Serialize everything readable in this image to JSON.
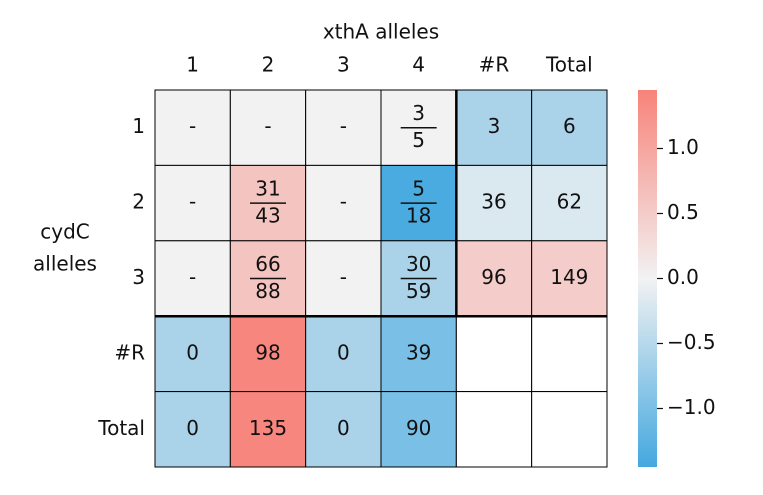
{
  "chart_data": {
    "type": "heatmap",
    "x_label": "xthA alleles",
    "y_label": [
      "cydC",
      "alleles"
    ],
    "columns": [
      "1",
      "2",
      "3",
      "4",
      "#R",
      "Total"
    ],
    "rows": [
      "1",
      "2",
      "3",
      "#R",
      "Total"
    ],
    "cell_labels": [
      [
        "-",
        "-",
        "-",
        {
          "numerator": 3,
          "denominator": 5
        },
        3,
        6
      ],
      [
        "-",
        {
          "numerator": 31,
          "denominator": 43
        },
        "-",
        {
          "numerator": 5,
          "denominator": 18
        },
        36,
        62
      ],
      [
        "-",
        {
          "numerator": 66,
          "denominator": 88
        },
        "-",
        {
          "numerator": 30,
          "denominator": 59
        },
        96,
        149
      ],
      [
        0,
        98,
        0,
        39,
        null,
        null
      ],
      [
        0,
        135,
        0,
        90,
        null,
        null
      ]
    ],
    "values": [
      [
        0,
        0,
        0,
        0,
        -0.6,
        -0.6
      ],
      [
        0,
        0.6,
        0,
        -1.4,
        -0.2,
        -0.2
      ],
      [
        0,
        0.6,
        0,
        -0.6,
        0.5,
        0.5
      ],
      [
        -0.6,
        1.4,
        -0.6,
        -1.0,
        null,
        null
      ],
      [
        -0.6,
        1.4,
        -0.6,
        -1.0,
        null,
        null
      ]
    ],
    "colormap": [
      "#44a8df",
      "#f2f2f2",
      "#f7837a"
    ],
    "vlim": [
      -1.45,
      1.45
    ],
    "colorbar_ticks": [
      {
        "value": -1,
        "label": "−1.0"
      },
      {
        "value": -0.5,
        "label": "−0.5"
      },
      {
        "value": 0,
        "label": "0.0"
      },
      {
        "value": 0.5,
        "label": "0.5"
      },
      {
        "value": 1,
        "label": "1.0"
      }
    ]
  }
}
